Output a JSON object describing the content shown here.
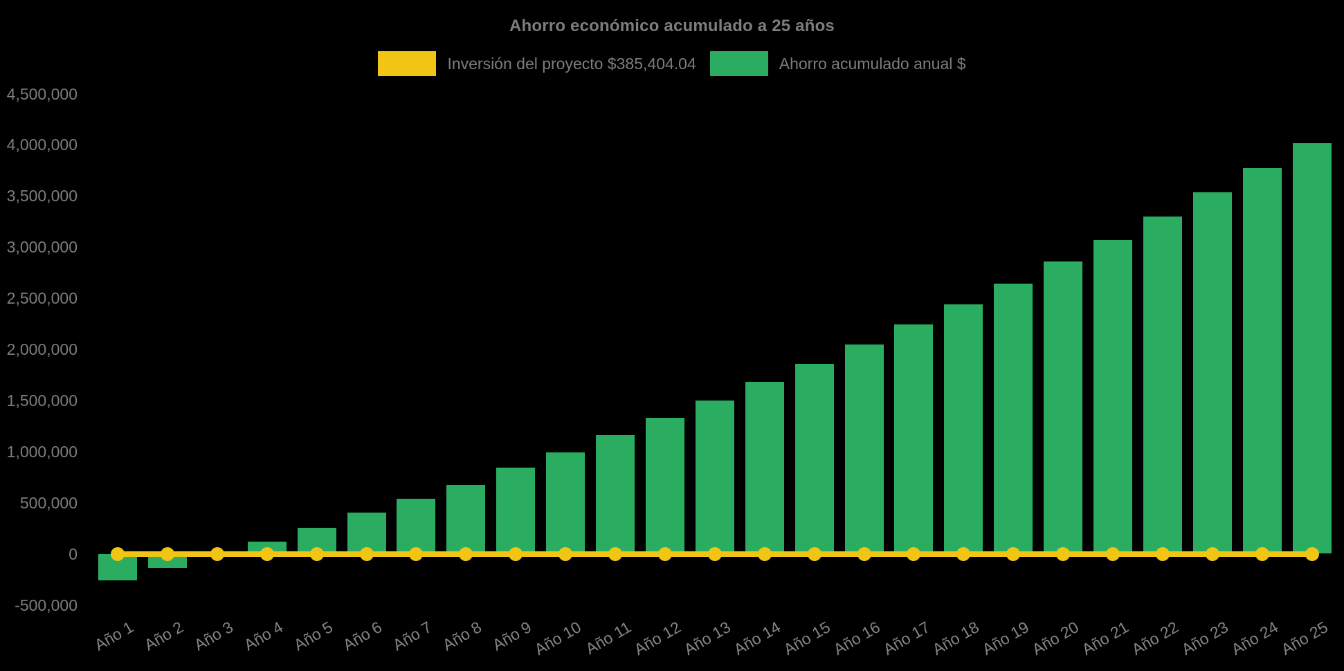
{
  "title": "Ahorro económico acumulado a 25 años",
  "legend": {
    "items": [
      {
        "label": "Inversión del proyecto $385,404.04",
        "color": "#F0C513"
      },
      {
        "label": "Ahorro acumulado anual $",
        "color": "#2BAD61"
      }
    ]
  },
  "chart_data": {
    "type": "bar",
    "title": "Ahorro económico acumulado a 25 años",
    "xlabel": "",
    "ylabel": "",
    "background_color": "#000000",
    "text_color": "#7d7d7d",
    "grid": false,
    "legend_position": "top",
    "ylim": [
      -500000,
      4500000
    ],
    "ytick_step": 500000,
    "ytick_labels": [
      "4,500,000",
      "4,000,000",
      "3,500,000",
      "3,000,000",
      "2,500,000",
      "2,000,000",
      "1,500,000",
      "1,000,000",
      "500,000",
      "0",
      "-500,000"
    ],
    "categories": [
      "Año 1",
      "Año 2",
      "Año 3",
      "Año 4",
      "Año 5",
      "Año 6",
      "Año 7",
      "Año 8",
      "Año 9",
      "Año 10",
      "Año 11",
      "Año 12",
      "Año 13",
      "Año 14",
      "Año 15",
      "Año 16",
      "Año 17",
      "Año 18",
      "Año 19",
      "Año 20",
      "Año 21",
      "Año 22",
      "Año 23",
      "Año 24",
      "Año 25"
    ],
    "series": [
      {
        "name": "Inversión del proyecto $385,404.04",
        "type": "line",
        "color": "#F0C513",
        "legend_value": "$385,404.04",
        "plotted_constant_value": 0,
        "values": [
          0,
          0,
          0,
          0,
          0,
          0,
          0,
          0,
          0,
          0,
          0,
          0,
          0,
          0,
          0,
          0,
          0,
          0,
          0,
          0,
          0,
          0,
          0,
          0,
          0
        ]
      },
      {
        "name": "Ahorro acumulado anual $",
        "type": "bar",
        "color": "#2BAD61",
        "values": [
          -260000,
          -140000,
          -15000,
          120000,
          255000,
          400000,
          535000,
          675000,
          840000,
          990000,
          1160000,
          1330000,
          1500000,
          1680000,
          1860000,
          2050000,
          2240000,
          2440000,
          2645000,
          2860000,
          3070000,
          3300000,
          3535000,
          3770000,
          4015000
        ]
      }
    ]
  }
}
